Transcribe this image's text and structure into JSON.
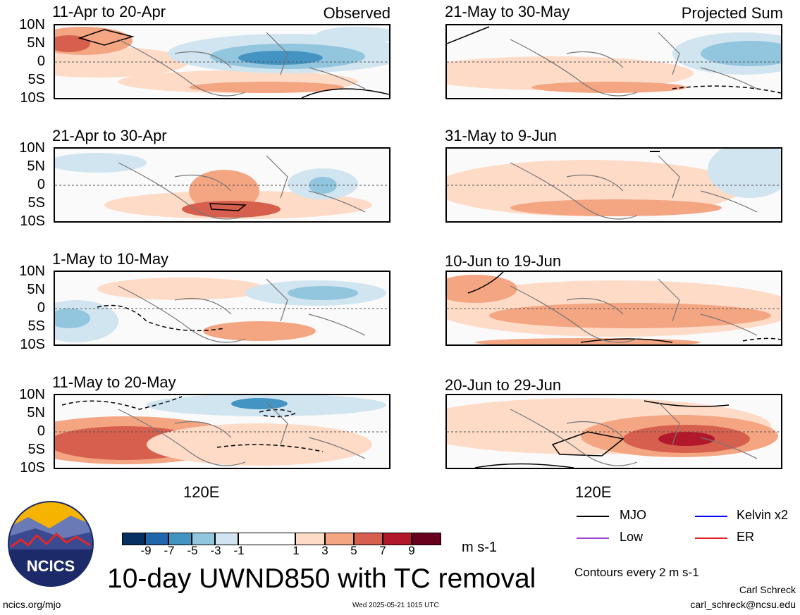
{
  "figure": {
    "title": "10-day UWND850 with TC removal",
    "units": "m s-1",
    "x_axis_label": "120E",
    "lat_labels": [
      "10N",
      "5N",
      "0",
      "5S",
      "10S"
    ],
    "contour_note": "Contours every 2 m s-1",
    "author": "Carl Schreck",
    "email": "carl_schreck@ncsu.edu",
    "site": "ncics.org/mjo",
    "timestamp": "Wed 2025-05-21 1015 UTC",
    "logo_text": "NCICS"
  },
  "columns": {
    "left_label": "Observed",
    "right_label": "Projected Sum"
  },
  "panels": {
    "obs": [
      {
        "title": "11-Apr to 20-Apr"
      },
      {
        "title": "21-Apr to 30-Apr"
      },
      {
        "title": "1-May to 10-May"
      },
      {
        "title": "11-May to 20-May"
      }
    ],
    "proj": [
      {
        "title": "21-May to 30-May"
      },
      {
        "title": "31-May to 9-Jun"
      },
      {
        "title": "10-Jun to 19-Jun"
      },
      {
        "title": "20-Jun to 29-Jun"
      }
    ]
  },
  "colorbar": {
    "ticks": [
      "-9",
      "-7",
      "-5",
      "-3",
      "-1",
      "1",
      "3",
      "5",
      "7",
      "9"
    ],
    "colors": [
      "#053061",
      "#2166ac",
      "#4393c3",
      "#92c5de",
      "#d1e5f0",
      "#ffffff",
      "#fddbc7",
      "#f4a582",
      "#d6604d",
      "#b2182b",
      "#67001f"
    ]
  },
  "legend": {
    "items": [
      {
        "label": "MJO",
        "color": "#000000"
      },
      {
        "label": "Kelvin x2",
        "color": "#0000ff"
      },
      {
        "label": "Low",
        "color": "#a040d0"
      },
      {
        "label": "ER",
        "color": "#e02020"
      }
    ]
  }
}
